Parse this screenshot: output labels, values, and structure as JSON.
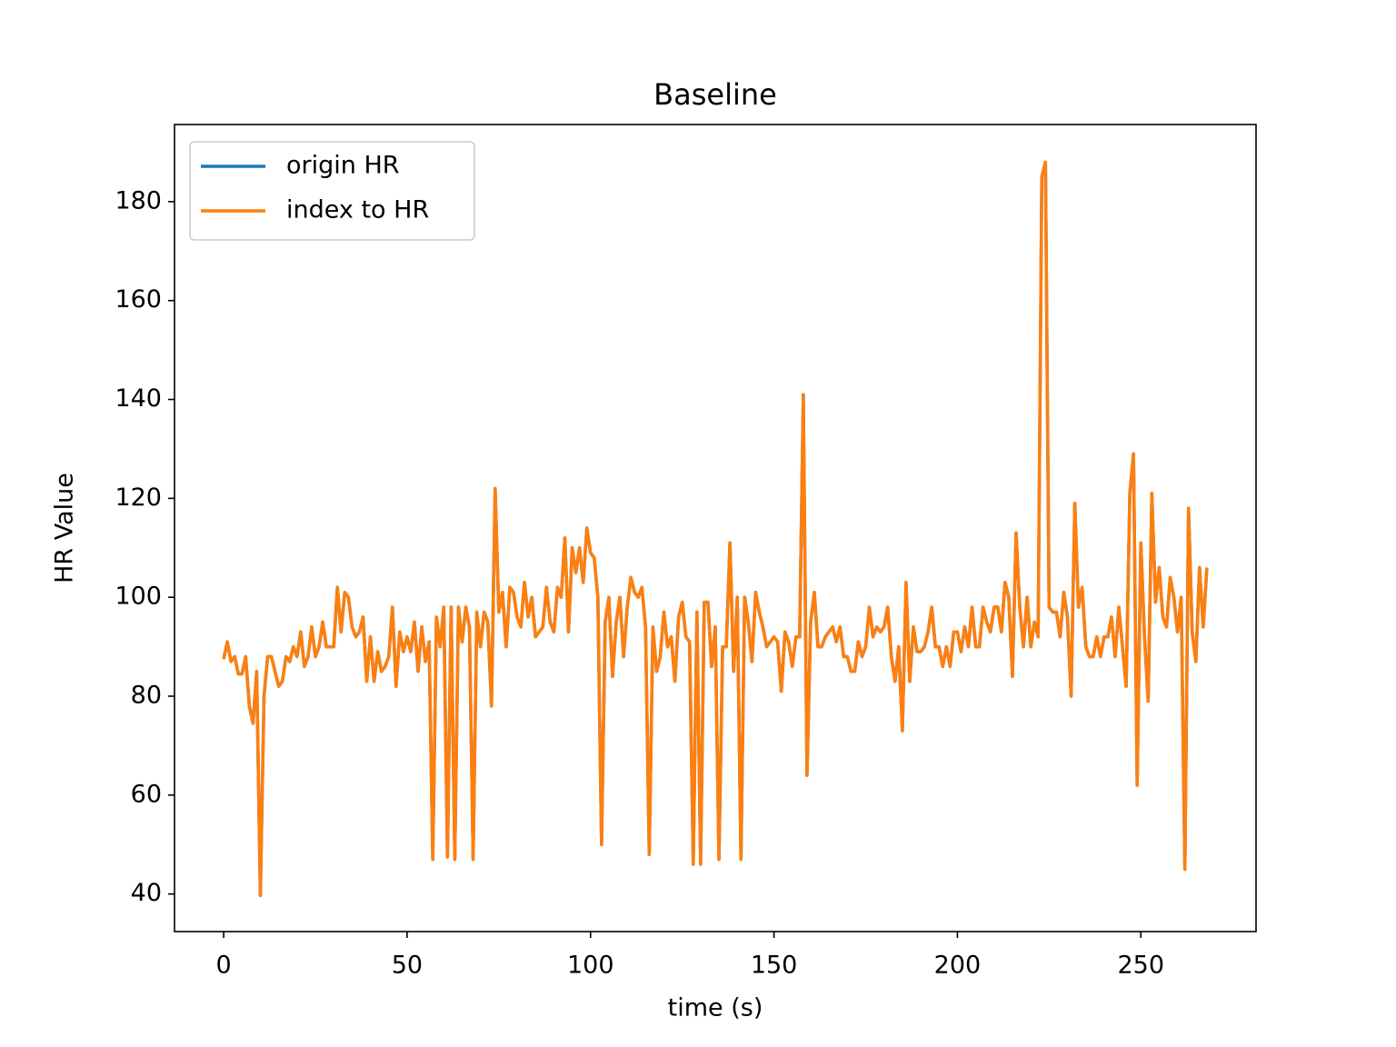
{
  "chart_data": {
    "type": "line",
    "title": "Baseline",
    "x_label": "time (s)",
    "y_label": "HR Value",
    "x": [
      0,
      1,
      2,
      3,
      4,
      5,
      6,
      7,
      8,
      9,
      10,
      11,
      12,
      13,
      14,
      15,
      16,
      17,
      18,
      19,
      20,
      21,
      22,
      23,
      24,
      25,
      26,
      27,
      28,
      29,
      30,
      31,
      32,
      33,
      34,
      35,
      36,
      37,
      38,
      39,
      40,
      41,
      42,
      43,
      44,
      45,
      46,
      47,
      48,
      49,
      50,
      51,
      52,
      53,
      54,
      55,
      56,
      57,
      58,
      59,
      60,
      61,
      62,
      63,
      64,
      65,
      66,
      67,
      68,
      69,
      70,
      71,
      72,
      73,
      74,
      75,
      76,
      77,
      78,
      79,
      80,
      81,
      82,
      83,
      84,
      85,
      86,
      87,
      88,
      89,
      90,
      91,
      92,
      93,
      94,
      95,
      96,
      97,
      98,
      99,
      100,
      101,
      102,
      103,
      104,
      105,
      106,
      107,
      108,
      109,
      110,
      111,
      112,
      113,
      114,
      115,
      116,
      117,
      118,
      119,
      120,
      121,
      122,
      123,
      124,
      125,
      126,
      127,
      128,
      129,
      130,
      131,
      132,
      133,
      134,
      135,
      136,
      137,
      138,
      139,
      140,
      141,
      142,
      143,
      144,
      145,
      146,
      147,
      148,
      149,
      150,
      151,
      152,
      153,
      154,
      155,
      156,
      157,
      158,
      159,
      160,
      161,
      162,
      163,
      164,
      165,
      166,
      167,
      168,
      169,
      170,
      171,
      172,
      173,
      174,
      175,
      176,
      177,
      178,
      179,
      180,
      181,
      182,
      183,
      184,
      185,
      186,
      187,
      188,
      189,
      190,
      191,
      192,
      193,
      194,
      195,
      196,
      197,
      198,
      199,
      200,
      201,
      202,
      203,
      204,
      205,
      206,
      207,
      208,
      209,
      210,
      211,
      212,
      213,
      214,
      215,
      216,
      217,
      218,
      219,
      220,
      221,
      222,
      223,
      224,
      225,
      226,
      227,
      228,
      229,
      230,
      231,
      232,
      233,
      234,
      235,
      236,
      237,
      238,
      239,
      240,
      241,
      242,
      243,
      244,
      245,
      246,
      247,
      248,
      249,
      250,
      251,
      252,
      253,
      254,
      255,
      256,
      257,
      258,
      259,
      260,
      261,
      262,
      263,
      264,
      265,
      266,
      267,
      268
    ],
    "series": [
      {
        "name": "origin HR",
        "color": "#1f77b4",
        "values": [
          87.5,
          91,
          87,
          88,
          84.5,
          84.5,
          88,
          78,
          74.5,
          85,
          39.7,
          80,
          88,
          88,
          85,
          82,
          83,
          88,
          87,
          90,
          88,
          93,
          86,
          88,
          94,
          88,
          90,
          95,
          90,
          90,
          90,
          102,
          93,
          101,
          100,
          94,
          92,
          93,
          96,
          83,
          92,
          83,
          89,
          85,
          86,
          88,
          98,
          82,
          93,
          89,
          92,
          89,
          95,
          85,
          94,
          87,
          91,
          47,
          96,
          90,
          98,
          47.5,
          98,
          47,
          98,
          91,
          98,
          94,
          47,
          97,
          90,
          97,
          95,
          78,
          122,
          97,
          101,
          90,
          102,
          101,
          96,
          94,
          103,
          96,
          100,
          92,
          93,
          94,
          102,
          95,
          93,
          102,
          100,
          112,
          93,
          110,
          105,
          110,
          103,
          114,
          109,
          108,
          100,
          50,
          95,
          100,
          84,
          95,
          100,
          88,
          98,
          104,
          101,
          100,
          102,
          94,
          48,
          94,
          85,
          88,
          97,
          90,
          92,
          83,
          96,
          99,
          92,
          91,
          46,
          97,
          46,
          99,
          99,
          86,
          94,
          47,
          90,
          90,
          111,
          85,
          100,
          47,
          100,
          95,
          87,
          101,
          97,
          94,
          90,
          91,
          92,
          91,
          81,
          93,
          91,
          86,
          92,
          92,
          141,
          64,
          95,
          101,
          90,
          90,
          92,
          93,
          94,
          91,
          94,
          88,
          88,
          85,
          85,
          91,
          88,
          90,
          98,
          92,
          94,
          93,
          94,
          98,
          88,
          83,
          90,
          73,
          103,
          83,
          94,
          89,
          89,
          90,
          93,
          98,
          90,
          90,
          86,
          90,
          86,
          93,
          93,
          89,
          94,
          90,
          98,
          90,
          90,
          98,
          95,
          93,
          98,
          98,
          93,
          103,
          100,
          84,
          113,
          98,
          90,
          100,
          90,
          95,
          92,
          185,
          188,
          98,
          97,
          97,
          92,
          101,
          96,
          80,
          119,
          98,
          102,
          90,
          88,
          88,
          92,
          88,
          92,
          92,
          96,
          88,
          98,
          90,
          82,
          121,
          129,
          62,
          111,
          92,
          79,
          121,
          99,
          106,
          96,
          94,
          104,
          100,
          93,
          100,
          45,
          118,
          93,
          87,
          106,
          94,
          106
        ]
      },
      {
        "name": "index to HR",
        "color": "#ff7f0e",
        "values": [
          87.5,
          91,
          87,
          88,
          84.5,
          84.5,
          88,
          78,
          74.5,
          85,
          39.7,
          80,
          88,
          88,
          85,
          82,
          83,
          88,
          87,
          90,
          88,
          93,
          86,
          88,
          94,
          88,
          90,
          95,
          90,
          90,
          90,
          102,
          93,
          101,
          100,
          94,
          92,
          93,
          96,
          83,
          92,
          83,
          89,
          85,
          86,
          88,
          98,
          82,
          93,
          89,
          92,
          89,
          95,
          85,
          94,
          87,
          91,
          47,
          96,
          90,
          98,
          47.5,
          98,
          47,
          98,
          91,
          98,
          94,
          47,
          97,
          90,
          97,
          95,
          78,
          122,
          97,
          101,
          90,
          102,
          101,
          96,
          94,
          103,
          96,
          100,
          92,
          93,
          94,
          102,
          95,
          93,
          102,
          100,
          112,
          93,
          110,
          105,
          110,
          103,
          114,
          109,
          108,
          100,
          50,
          95,
          100,
          84,
          95,
          100,
          88,
          98,
          104,
          101,
          100,
          102,
          94,
          48,
          94,
          85,
          88,
          97,
          90,
          92,
          83,
          96,
          99,
          92,
          91,
          46,
          97,
          46,
          99,
          99,
          86,
          94,
          47,
          90,
          90,
          111,
          85,
          100,
          47,
          100,
          95,
          87,
          101,
          97,
          94,
          90,
          91,
          92,
          91,
          81,
          93,
          91,
          86,
          92,
          92,
          141,
          64,
          95,
          101,
          90,
          90,
          92,
          93,
          94,
          91,
          94,
          88,
          88,
          85,
          85,
          91,
          88,
          90,
          98,
          92,
          94,
          93,
          94,
          98,
          88,
          83,
          90,
          73,
          103,
          83,
          94,
          89,
          89,
          90,
          93,
          98,
          90,
          90,
          86,
          90,
          86,
          93,
          93,
          89,
          94,
          90,
          98,
          90,
          90,
          98,
          95,
          93,
          98,
          98,
          93,
          103,
          100,
          84,
          113,
          98,
          90,
          100,
          90,
          95,
          92,
          185,
          188,
          98,
          97,
          97,
          92,
          101,
          96,
          80,
          119,
          98,
          102,
          90,
          88,
          88,
          92,
          88,
          92,
          92,
          96,
          88,
          98,
          90,
          82,
          121,
          129,
          62,
          111,
          92,
          79,
          121,
          99,
          106,
          96,
          94,
          104,
          100,
          93,
          100,
          45,
          118,
          93,
          87,
          106,
          94,
          106
        ]
      }
    ],
    "xlim": [
      -13.4,
      281.4
    ],
    "xticks": [
      0,
      50,
      100,
      150,
      200,
      250
    ],
    "ylim": [
      32.4,
      195.6
    ],
    "yticks": [
      40,
      60,
      80,
      100,
      120,
      140,
      160,
      180
    ],
    "legend": "upper left",
    "grid": false
  }
}
